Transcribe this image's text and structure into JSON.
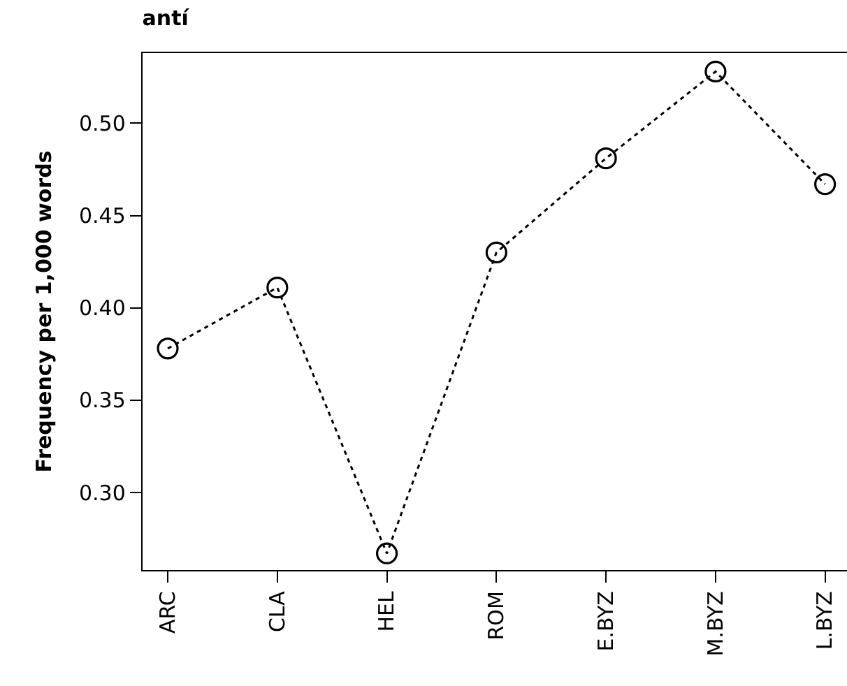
{
  "chart_data": {
    "type": "line",
    "title": "antí",
    "ylabel": "Frequency per 1,000 words",
    "categories": [
      "ARC",
      "CLA",
      "HEL",
      "ROM",
      "E.BYZ",
      "M.BYZ",
      "L.BYZ"
    ],
    "series": [
      {
        "color": "#000000",
        "values": [
          0.378,
          0.411,
          0.267,
          0.43,
          0.481,
          0.528,
          0.467
        ]
      }
    ],
    "ylim": [
      0.258,
      0.538
    ],
    "yticks": [
      {
        "value": 0.3,
        "label": "0.30"
      },
      {
        "value": 0.35,
        "label": "0.35"
      },
      {
        "value": 0.4,
        "label": "0.40"
      },
      {
        "value": 0.45,
        "label": "0.45"
      },
      {
        "value": 0.5,
        "label": "0.50"
      }
    ],
    "marker": "circle",
    "line_style": "dotted"
  }
}
